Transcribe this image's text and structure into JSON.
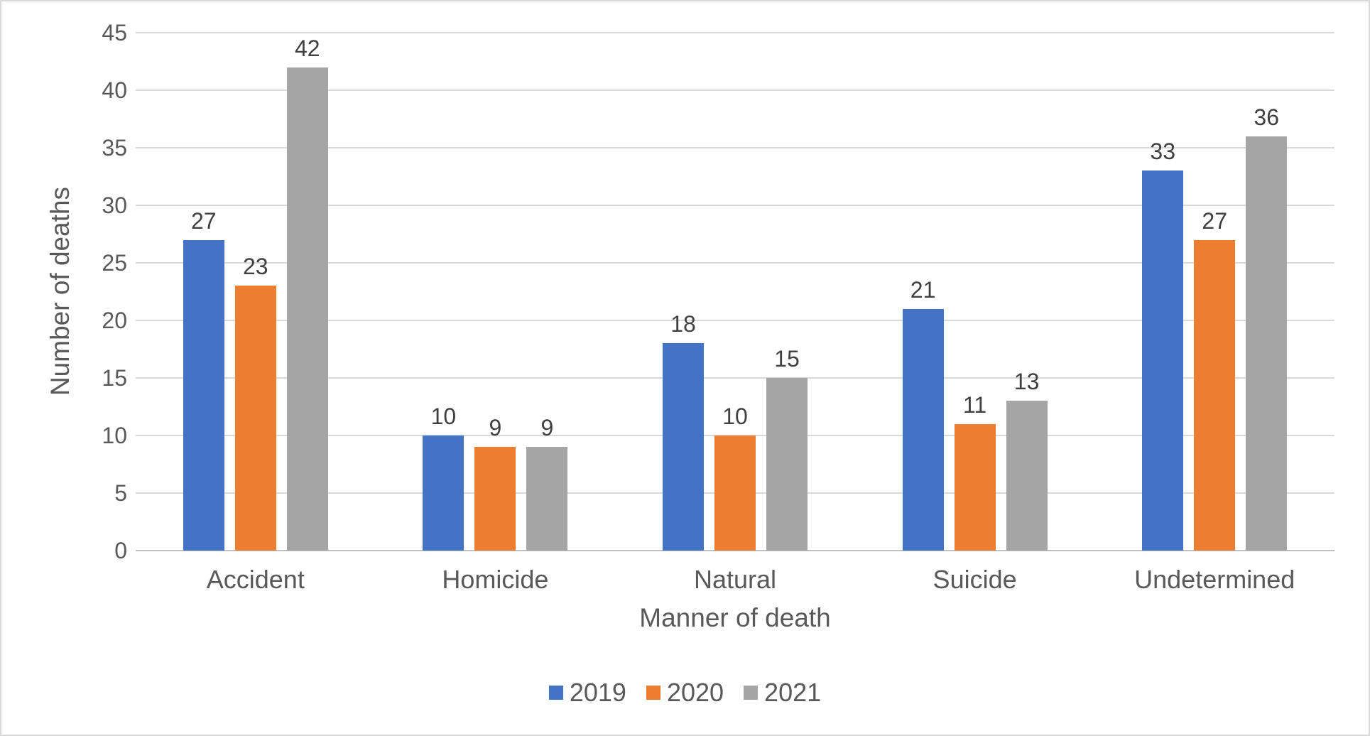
{
  "chart_data": {
    "type": "bar",
    "title": "",
    "xlabel": "Manner of death",
    "ylabel": "Number of deaths",
    "categories": [
      "Accident",
      "Homicide",
      "Natural",
      "Suicide",
      "Undetermined"
    ],
    "series": [
      {
        "name": "2019",
        "color": "#4472C4",
        "values": [
          27,
          10,
          18,
          21,
          33
        ]
      },
      {
        "name": "2020",
        "color": "#ED7D31",
        "values": [
          23,
          9,
          10,
          11,
          27
        ]
      },
      {
        "name": "2021",
        "color": "#A5A5A5",
        "values": [
          42,
          9,
          15,
          13,
          36
        ]
      }
    ],
    "ylim": [
      0,
      45
    ],
    "yticks": [
      0,
      5,
      10,
      15,
      20,
      25,
      30,
      35,
      40,
      45
    ],
    "grid": true,
    "data_labels": true,
    "legend_position": "bottom"
  },
  "colors": {
    "gridline": "#D9D9D9",
    "axis_baseline": "#BFBFBF",
    "axis_text": "#595959",
    "data_label_text": "#404040",
    "figure_border": "#D9D9D9",
    "background": "#FFFFFF"
  }
}
